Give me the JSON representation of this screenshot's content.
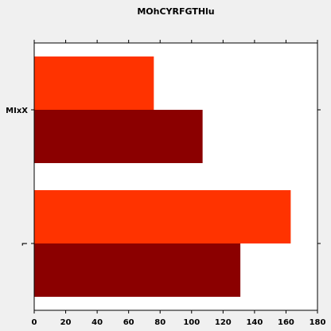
{
  "chart_data": {
    "type": "bar",
    "orientation": "horizontal",
    "title": "MOhCYRFGTHlu",
    "categories": [
      "MIxX",
      "⌐"
    ],
    "series": [
      {
        "values": [
          76,
          163
        ],
        "color": "#ff3300"
      },
      {
        "values": [
          107,
          131
        ],
        "color": "#8b0000"
      }
    ],
    "xlim": [
      0,
      180
    ],
    "xticks": [
      0,
      20,
      40,
      60,
      80,
      100,
      120,
      140,
      160,
      180
    ],
    "xlabel": "",
    "ylabel": "",
    "grid": false,
    "background": "#ffffff"
  }
}
